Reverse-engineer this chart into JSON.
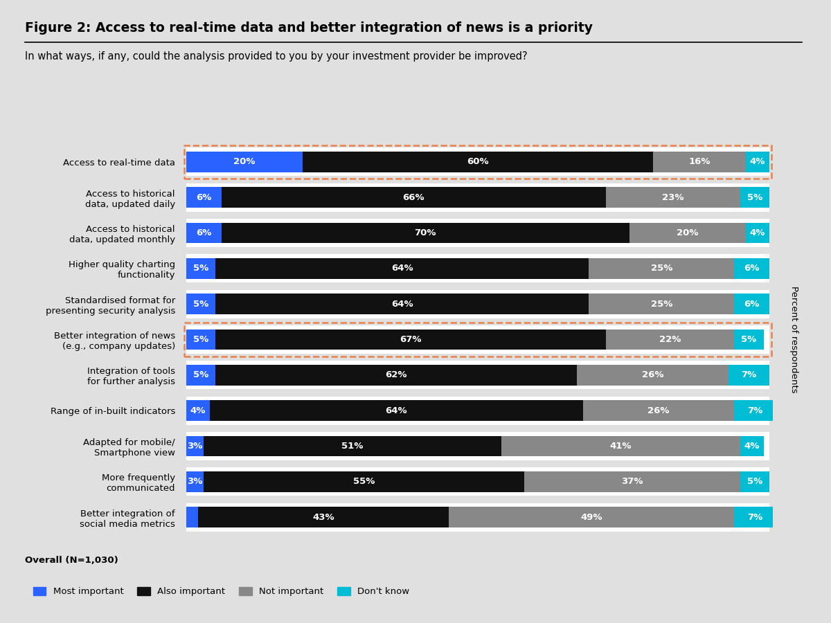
{
  "title": "Figure 2: Access to real-time data and better integration of news is a priority",
  "subtitle": "In what ways, if any, could the analysis provided to you by your investment provider be improved?",
  "footnote": "Overall (N=1,030)",
  "categories": [
    "Access to real-time data",
    "Access to historical\ndata, updated daily",
    "Access to historical\ndata, updated monthly",
    "Higher quality charting\nfunctionality",
    "Standardised format for\npresenting security analysis",
    "Better integration of news\n(e.g., company updates)",
    "Integration of tools\nfor further analysis",
    "Range of in-built indicators",
    "Adapted for mobile/\nSmartphone view",
    "More frequently\ncommunicated",
    "Better integration of\nsocial media metrics"
  ],
  "most_important": [
    20,
    6,
    6,
    5,
    5,
    5,
    5,
    4,
    3,
    3,
    2
  ],
  "also_important": [
    60,
    66,
    70,
    64,
    64,
    67,
    62,
    64,
    51,
    55,
    43
  ],
  "not_important": [
    16,
    23,
    20,
    25,
    25,
    22,
    26,
    26,
    41,
    37,
    49
  ],
  "dont_know": [
    4,
    5,
    4,
    6,
    6,
    5,
    7,
    7,
    4,
    5,
    7
  ],
  "colors": {
    "most_important": "#2962FF",
    "also_important": "#111111",
    "not_important": "#888888",
    "dont_know": "#00BCD4"
  },
  "highlighted_rows": [
    0,
    5
  ],
  "highlight_color": "#E8824A",
  "background_color": "#E0E0E0",
  "legend_labels": [
    "Most important",
    "Also important",
    "Not important",
    "Don't know"
  ],
  "ylabel": "Percent of respondents"
}
